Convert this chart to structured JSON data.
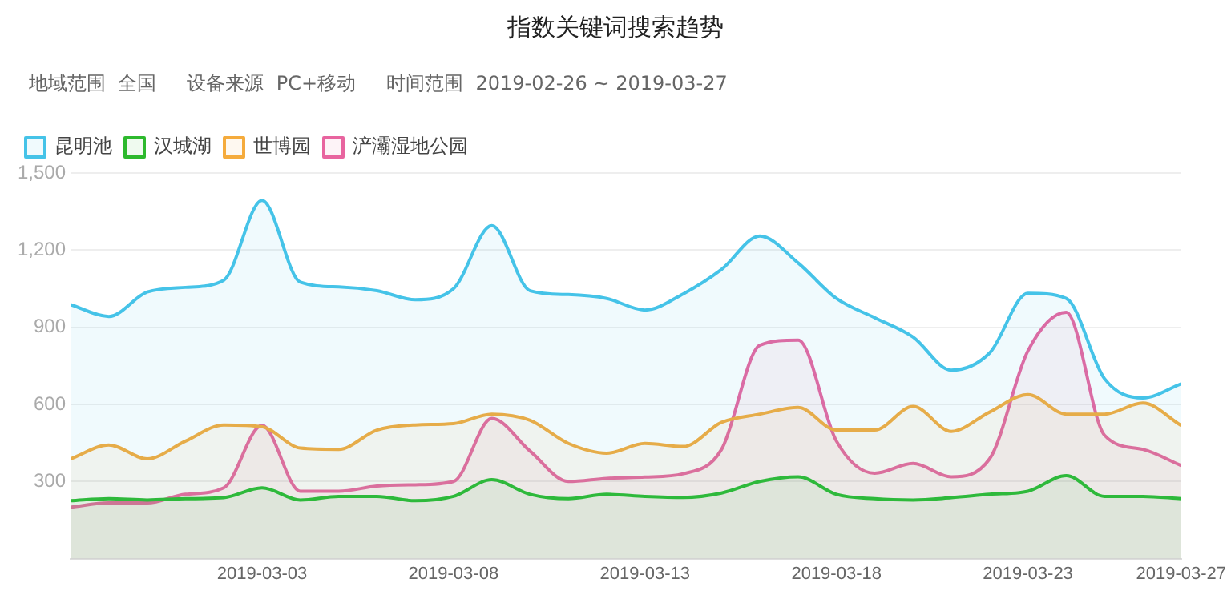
{
  "chart_data": {
    "type": "area",
    "title": "指数关键词搜索趋势",
    "subtitle": "地域范围  全国     设备来源  PC+移动     时间范围  2019-02-26 ~ 2019-03-27",
    "x": [
      "2019-02-26",
      "2019-02-27",
      "2019-02-28",
      "2019-03-01",
      "2019-03-02",
      "2019-03-03",
      "2019-03-04",
      "2019-03-05",
      "2019-03-06",
      "2019-03-07",
      "2019-03-08",
      "2019-03-09",
      "2019-03-10",
      "2019-03-11",
      "2019-03-12",
      "2019-03-13",
      "2019-03-14",
      "2019-03-15",
      "2019-03-16",
      "2019-03-17",
      "2019-03-18",
      "2019-03-19",
      "2019-03-20",
      "2019-03-21",
      "2019-03-22",
      "2019-03-23",
      "2019-03-24",
      "2019-03-25",
      "2019-03-26",
      "2019-03-27"
    ],
    "series": [
      {
        "name": "昆明池",
        "color": "#45c3e8",
        "values": [
          988,
          942,
          1037,
          1055,
          1083,
          1393,
          1075,
          1057,
          1042,
          1007,
          1050,
          1295,
          1042,
          1027,
          1012,
          967,
          1030,
          1125,
          1255,
          1150,
          1012,
          937,
          862,
          733,
          800,
          1032,
          1012,
          700,
          625,
          680
        ]
      },
      {
        "name": "汉城湖",
        "color": "#2db92d",
        "values": [
          225,
          233,
          228,
          233,
          237,
          275,
          228,
          242,
          242,
          225,
          242,
          307,
          250,
          233,
          250,
          242,
          238,
          255,
          300,
          318,
          250,
          233,
          228,
          237,
          250,
          262,
          323,
          242,
          242,
          233
        ]
      },
      {
        "name": "世博园",
        "color": "#f5ab3c",
        "values": [
          388,
          442,
          388,
          457,
          520,
          513,
          430,
          425,
          500,
          520,
          525,
          562,
          538,
          448,
          410,
          448,
          436,
          530,
          562,
          588,
          500,
          500,
          592,
          495,
          570,
          638,
          562,
          562,
          605,
          518
        ]
      },
      {
        "name": "浐灞湿地公园",
        "color": "#e8649f",
        "values": [
          200,
          217,
          217,
          250,
          275,
          518,
          262,
          262,
          282,
          287,
          300,
          545,
          418,
          300,
          312,
          317,
          330,
          425,
          830,
          850,
          457,
          332,
          370,
          318,
          388,
          808,
          958,
          480,
          425,
          362
        ]
      }
    ],
    "xlim": [
      "2019-02-26",
      "2019-03-27"
    ],
    "xticks": [
      "2019-03-03",
      "2019-03-08",
      "2019-03-13",
      "2019-03-18",
      "2019-03-23",
      "2019-03-27"
    ],
    "ylim": [
      0,
      1500
    ],
    "yticks": [
      {
        "value": 300,
        "label": "300"
      },
      {
        "value": 600,
        "label": "600"
      },
      {
        "value": 900,
        "label": "900"
      },
      {
        "value": 1200,
        "label": "1,200"
      },
      {
        "value": 1500,
        "label": "1,500"
      }
    ],
    "grid": "y",
    "legend": "top left",
    "marker": "none",
    "line_style": "solid"
  }
}
